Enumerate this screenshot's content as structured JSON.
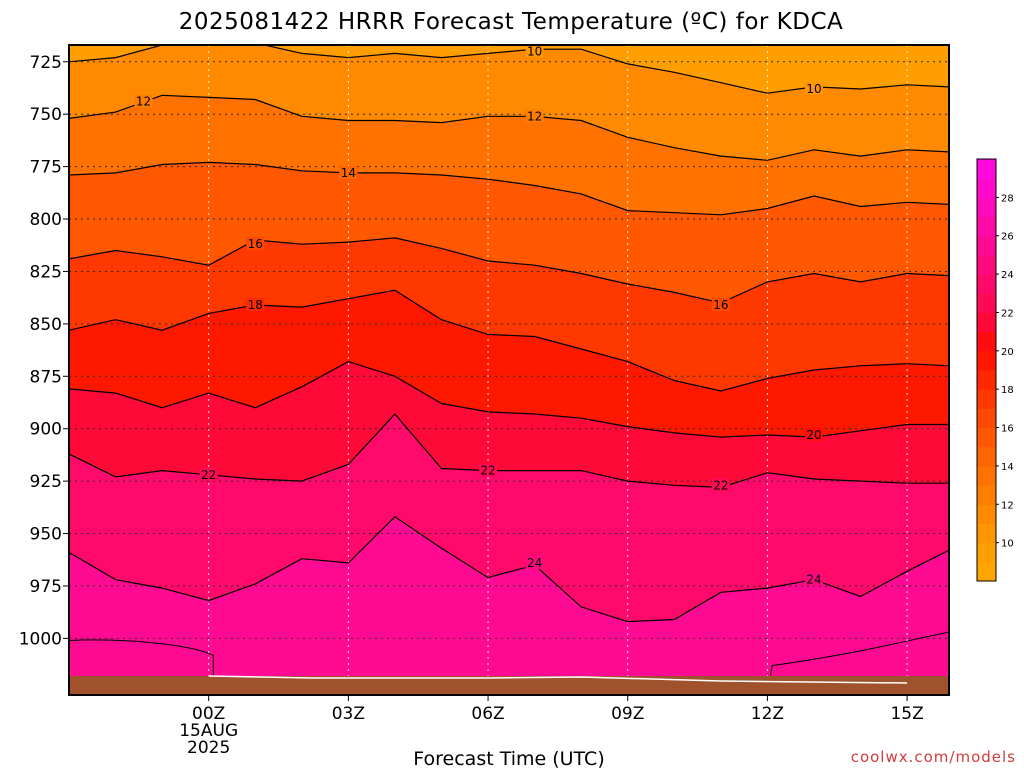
{
  "chart_data": {
    "type": "heatmap",
    "title": "2025081422 HRRR Forecast Temperature (ºC) for KDCA",
    "xlabel": "Forecast Time (UTC)",
    "ylabel": "",
    "credit": "coolwx.com/models",
    "x_range_hours": [
      -3,
      15.9
    ],
    "y_range_hpa": [
      717,
      1027
    ],
    "y_axis_inverted": true,
    "grid": true,
    "x_ticks": [
      {
        "hour": 0,
        "lines": [
          "00Z",
          "15AUG",
          "2025"
        ]
      },
      {
        "hour": 3,
        "lines": [
          "03Z"
        ]
      },
      {
        "hour": 6,
        "lines": [
          "06Z"
        ]
      },
      {
        "hour": 9,
        "lines": [
          "09Z"
        ]
      },
      {
        "hour": 12,
        "lines": [
          "12Z"
        ]
      },
      {
        "hour": 15,
        "lines": [
          "15Z"
        ]
      }
    ],
    "y_ticks": [
      725,
      750,
      775,
      800,
      825,
      850,
      875,
      900,
      925,
      950,
      975,
      1000
    ],
    "colorbar": {
      "min": 8,
      "max": 30,
      "labels": [
        10,
        12,
        14,
        16,
        18,
        20,
        22,
        24,
        26,
        28
      ],
      "levels": [
        {
          "from": 8,
          "to": 9,
          "color": "#ffa500"
        },
        {
          "from": 9,
          "to": 10,
          "color": "#ff9e00"
        },
        {
          "from": 10,
          "to": 11,
          "color": "#ff9500"
        },
        {
          "from": 11,
          "to": 12,
          "color": "#ff8a00"
        },
        {
          "from": 12,
          "to": 13,
          "color": "#ff7e00"
        },
        {
          "from": 13,
          "to": 14,
          "color": "#ff7200"
        },
        {
          "from": 14,
          "to": 15,
          "color": "#ff6600"
        },
        {
          "from": 15,
          "to": 16,
          "color": "#ff5800"
        },
        {
          "from": 16,
          "to": 17,
          "color": "#ff4800"
        },
        {
          "from": 17,
          "to": 18,
          "color": "#ff3800"
        },
        {
          "from": 18,
          "to": 19,
          "color": "#ff2800"
        },
        {
          "from": 19,
          "to": 20,
          "color": "#ff1800"
        },
        {
          "from": 20,
          "to": 21,
          "color": "#ff0c10"
        },
        {
          "from": 21,
          "to": 22,
          "color": "#ff0a38"
        },
        {
          "from": 22,
          "to": 23,
          "color": "#ff0a55"
        },
        {
          "from": 23,
          "to": 24,
          "color": "#ff0a6a"
        },
        {
          "from": 24,
          "to": 25,
          "color": "#ff0a7e"
        },
        {
          "from": 25,
          "to": 26,
          "color": "#ff0a92"
        },
        {
          "from": 26,
          "to": 27,
          "color": "#ff0aa6"
        },
        {
          "from": 27,
          "to": 28,
          "color": "#ff0aba"
        },
        {
          "from": 28,
          "to": 29,
          "color": "#ff0acc"
        },
        {
          "from": 29,
          "to": 30,
          "color": "#ff0ade"
        }
      ]
    },
    "contour_x_hours": [
      -3,
      -2,
      -1,
      0,
      1,
      2,
      3,
      4,
      5,
      6,
      7,
      8,
      9,
      10,
      11,
      12,
      13,
      14,
      15,
      15.9
    ],
    "isotherms": [
      {
        "value": 10,
        "p": [
          725,
          723,
          717,
          716,
          716,
          721,
          723,
          721,
          723,
          721,
          719,
          719,
          726,
          730,
          735,
          740,
          737,
          738,
          736,
          737
        ]
      },
      {
        "value": 12,
        "p": [
          752,
          749,
          741,
          742,
          743,
          751,
          753,
          753,
          754,
          751,
          751,
          753,
          761,
          766,
          770,
          772,
          767,
          770,
          767,
          768
        ]
      },
      {
        "value": 14,
        "p": [
          779,
          778,
          774,
          773,
          774,
          777,
          778,
          778,
          779,
          781,
          784,
          788,
          796,
          797,
          798,
          795,
          789,
          794,
          792,
          793
        ]
      },
      {
        "value": 16,
        "p": [
          819,
          815,
          818,
          822,
          810,
          812,
          811,
          809,
          814,
          820,
          822,
          826,
          831,
          835,
          840,
          830,
          826,
          830,
          826,
          827
        ]
      },
      {
        "value": 18,
        "p": [
          853,
          848,
          853,
          845,
          841,
          842,
          838,
          834,
          848,
          855,
          856,
          862,
          868,
          877,
          882,
          876,
          872,
          870,
          869,
          870
        ]
      },
      {
        "value": 20,
        "p": [
          881,
          883,
          890,
          883,
          890,
          880,
          868,
          875,
          888,
          892,
          893,
          895,
          899,
          902,
          904,
          903,
          904,
          901,
          898,
          898
        ]
      },
      {
        "value": 22,
        "p": [
          912,
          923,
          920,
          922,
          924,
          925,
          917,
          893,
          919,
          920,
          920,
          920,
          925,
          927,
          928,
          921,
          924,
          925,
          926,
          926
        ]
      },
      {
        "value": 24,
        "p": [
          959,
          972,
          976,
          982,
          974,
          962,
          964,
          942,
          957,
          971,
          965,
          985,
          992,
          991,
          978,
          976,
          972,
          980,
          968,
          958
        ]
      }
    ],
    "isotherm_labels": [
      {
        "text": "10",
        "hour": 7.0,
        "p": 720
      },
      {
        "text": "10",
        "hour": 13.0,
        "p": 738
      },
      {
        "text": "12",
        "hour": 7.0,
        "p": 751
      },
      {
        "text": "12",
        "hour": -1.4,
        "p": 744
      },
      {
        "text": "14",
        "hour": 3.0,
        "p": 778
      },
      {
        "text": "16",
        "hour": 1.0,
        "p": 812
      },
      {
        "text": "16",
        "hour": 11.0,
        "p": 841
      },
      {
        "text": "18",
        "hour": 1.0,
        "p": 841
      },
      {
        "text": "20",
        "hour": 13.0,
        "p": 903
      },
      {
        "text": "22",
        "hour": 0.0,
        "p": 922
      },
      {
        "text": "22",
        "hour": 6.0,
        "p": 920
      },
      {
        "text": "22",
        "hour": 11.0,
        "p": 927
      },
      {
        "text": "24",
        "hour": 7.0,
        "p": 964
      },
      {
        "text": "24",
        "hour": 13.0,
        "p": 972
      }
    ]
  }
}
